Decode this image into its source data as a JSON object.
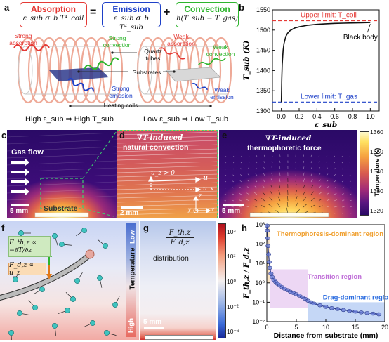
{
  "panels": {
    "a": {
      "letter": "a",
      "absorption": {
        "title": "Absorption",
        "formula": "ε_sub σ_b T⁴_coil",
        "color": "#e53935"
      },
      "equals": "=",
      "emission": {
        "title": "Emission",
        "formula": "ε_sub σ_b T⁴_sub",
        "color": "#1e40c8"
      },
      "plus": "+",
      "convection": {
        "title": "Convection",
        "formula": "h(T_sub − T_gas)",
        "color": "#2db52d"
      },
      "labels": {
        "strong_absorption": "Strong absorption",
        "strong_convection": "Strong convection",
        "quartz_tubes": "Quartz tubes",
        "weak_absorption": "Weak absorption",
        "weak_convection": "Weak convection",
        "substrates": "Substrates",
        "strong_emission": "Strong emission",
        "weak_emission": "Weak emission",
        "heating_coils": "Heating coils"
      },
      "captions": {
        "left": "High ε_sub ⇒ High T_sub",
        "right": "Low ε_sub ⇒ Low T_sub"
      }
    },
    "b": {
      "letter": "b"
    },
    "c": {
      "letter": "c",
      "gas_flow": "Gas flow",
      "substrate": "Substrate",
      "scale": "5 mm"
    },
    "d": {
      "letter": "d",
      "title_line1": "∇T-induced",
      "title_line2": "natural convection",
      "uz_gt0": "u_z > 0",
      "u": "u",
      "ux": "u_x",
      "axis_z": "z",
      "axis_x": "x",
      "axis_y": "y",
      "scale": "2 mm"
    },
    "e": {
      "letter": "e",
      "title_line1": "∇T-induced",
      "title_line2": "thermophoretic force",
      "scale": "5 mm"
    },
    "temp_colorbar": {
      "label": "Temperature (K)",
      "ticks": [
        "1360",
        "1350",
        "1340",
        "1330",
        "1320"
      ]
    },
    "f": {
      "letter": "f",
      "fth_formula": "F_th,z ∝ −∂T/∂z",
      "fd_formula": "F_d,z ∝ u_z",
      "temp_label": "Temperature",
      "low": "Low",
      "high": "High"
    },
    "g": {
      "letter": "g",
      "ratio_top": "F_th,z",
      "ratio_bottom": "F_d,z",
      "distribution": "distribution",
      "scale": "5 mm"
    },
    "ratio_colorbar": {
      "ticks": [
        "10⁴",
        "10²",
        "10⁰",
        "10⁻²",
        "10⁻⁴"
      ]
    },
    "h": {
      "letter": "h",
      "thermo_region": "Thermophoresis-dominant region",
      "transition_region": "Transition region",
      "drag_region": "Drag-dominant region"
    }
  },
  "colors": {
    "absorption": "#e53935",
    "emission": "#1e40c8",
    "convection": "#2db52d",
    "upper_limit": "#e53935",
    "lower_limit": "#1e40c8",
    "thermo_region": "#f0a030",
    "transition_region": "#c070d8",
    "drag_region": "#2d6ee0"
  },
  "chart_data": [
    {
      "panel": "b",
      "type": "line",
      "title": "",
      "xlabel": "ε_sub",
      "ylabel": "T_sub (K)",
      "xlim": [
        -0.1,
        1.1
      ],
      "ylim": [
        1300,
        1550
      ],
      "xticks": [
        0.0,
        0.2,
        0.4,
        0.6,
        0.8,
        1.0
      ],
      "yticks": [
        1300,
        1350,
        1400,
        1450,
        1500,
        1550
      ],
      "grid": false,
      "series": [
        {
          "name": "",
          "x": [
            0.0,
            0.005,
            0.01,
            0.02,
            0.03,
            0.05,
            0.07,
            0.1,
            0.15,
            0.2,
            0.3,
            0.4,
            0.5,
            0.6,
            0.7,
            0.8,
            0.9,
            1.0
          ],
          "y": [
            1322,
            1380,
            1415,
            1450,
            1467,
            1484,
            1492,
            1499,
            1505,
            1508,
            1512,
            1514,
            1515.5,
            1516.5,
            1517,
            1517.5,
            1518,
            1518.5
          ]
        }
      ],
      "reference_lines": [
        {
          "y": 1523,
          "label": "Upper limit: T_coil",
          "style": "dashed",
          "color": "#e53935"
        },
        {
          "y": 1322,
          "label": "Lower limit: T_gas",
          "style": "dashed",
          "color": "#1e40c8"
        }
      ],
      "annotations": [
        {
          "text": "Black body",
          "x": 1.0,
          "y": 1518.5
        }
      ]
    },
    {
      "panel": "h",
      "type": "scatter",
      "title": "",
      "xlabel": "Distance from substrate (mm)",
      "ylabel": "F_th,z / F_d,z",
      "xlim": [
        0,
        20
      ],
      "ylim_log10": [
        -2,
        3
      ],
      "y_scale": "log",
      "xticks": [
        0,
        5,
        10,
        15,
        20
      ],
      "yticks": [
        "10⁻²",
        "10⁻¹",
        "10⁰",
        "10¹",
        "10²",
        "10³"
      ],
      "grid": false,
      "series": [
        {
          "name": "",
          "x": [
            0.05,
            0.1,
            0.15,
            0.2,
            0.3,
            0.4,
            0.5,
            0.7,
            0.9,
            1.2,
            1.5,
            1.8,
            2.2,
            2.6,
            3.0,
            3.5,
            4.0,
            4.5,
            5.0,
            5.5,
            6.0,
            6.5,
            7.0,
            7.5,
            8.0,
            9.0,
            10.0,
            11.0,
            12.0,
            13.0,
            14.0,
            15.0,
            16.0,
            17.0,
            18.0,
            19.0
          ],
          "y": [
            900,
            500,
            200,
            80,
            30,
            12,
            6,
            3,
            2,
            1.4,
            1.1,
            0.9,
            0.75,
            0.6,
            0.5,
            0.42,
            0.35,
            0.3,
            0.26,
            0.22,
            0.18,
            0.15,
            0.12,
            0.1,
            0.085,
            0.07,
            0.058,
            0.05,
            0.045,
            0.04,
            0.036,
            0.033,
            0.03,
            0.028,
            0.026,
            0.024
          ]
        }
      ],
      "regions": [
        {
          "label": "Thermophoresis-dominant region",
          "x": [
            0,
            0.5
          ],
          "y": [
            1,
            1000
          ],
          "color": "#f0a030"
        },
        {
          "label": "Transition region",
          "x": [
            0.5,
            7
          ],
          "y": [
            0.05,
            5
          ],
          "color": "#c070d8"
        },
        {
          "label": "Drag-dominant region",
          "x": [
            7,
            20
          ],
          "y": [
            0.01,
            0.1
          ],
          "color": "#2d6ee0"
        }
      ]
    }
  ]
}
